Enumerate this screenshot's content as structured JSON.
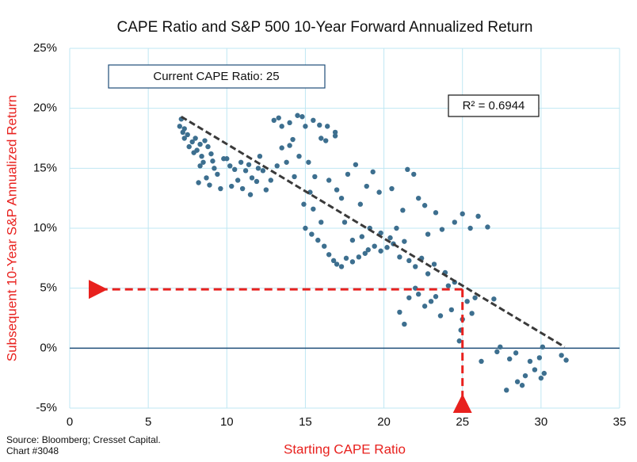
{
  "chart_data": {
    "type": "scatter",
    "title": "CAPE Ratio and S&P 500 10-Year Forward Annualized Return",
    "x_label": "Starting CAPE Ratio",
    "y_label": "Subsequent 10-Year S&P Annualized Return",
    "annotation": "Current CAPE Ratio: 25",
    "r_squared": "R² = 0.6944",
    "source": "Source: Bloomberg; Cresset Capital.",
    "chart_number": "Chart #3048",
    "color": "#3d6f8f",
    "grid": true,
    "xlim": [
      0,
      35
    ],
    "ylim": [
      -5,
      25
    ],
    "xticks": [
      0,
      5,
      10,
      15,
      20,
      25,
      30,
      35
    ],
    "yticks": [
      {
        "value": -5,
        "label": "-5%"
      },
      {
        "value": 0,
        "label": "0%"
      },
      {
        "value": 5,
        "label": "5%"
      },
      {
        "value": 10,
        "label": "10%"
      },
      {
        "value": 15,
        "label": "15%"
      },
      {
        "value": 20,
        "label": "20%"
      },
      {
        "value": 25,
        "label": "25%"
      }
    ],
    "trendline": {
      "x": [
        7.1,
        31.5
      ],
      "y": [
        19.3,
        0.1
      ]
    },
    "reference": {
      "x": 25,
      "y": 4.9
    },
    "x": [
      7,
      7.2,
      7.3,
      7.5,
      7.6,
      7.8,
      8,
      8.1,
      8.3,
      8.4,
      8.5,
      8.6,
      8.8,
      9,
      9.1,
      9.2,
      8.7,
      8.2,
      8.9,
      9.4,
      9.6,
      9.8,
      7.1,
      7.3,
      7.9,
      8.3,
      10,
      10.2,
      10.5,
      10.7,
      10.9,
      11.2,
      11,
      11.4,
      11.6,
      11.9,
      12,
      12.3,
      12.5,
      12.8,
      10.3,
      11.5,
      12.1,
      13,
      13.3,
      13.5,
      14,
      14.5,
      14.8,
      15,
      15.5,
      15.9,
      13.5,
      14,
      14.2,
      13.2,
      13.8,
      14.3,
      14.6,
      15.2,
      15.6,
      16,
      16.3,
      16.9,
      16.9,
      16.4,
      15.3,
      14.9,
      15.5,
      16,
      15,
      15.4,
      15.8,
      16.2,
      16.5,
      16.8,
      17,
      17.3,
      17.6,
      18,
      18.4,
      18.8,
      19,
      19.4,
      19.8,
      20.2,
      20.6,
      21,
      21.3,
      21.6,
      22,
      22.4,
      22.8,
      23.2,
      17.5,
      18,
      18.6,
      19.1,
      19.8,
      20.4,
      20.8,
      16.5,
      17,
      17.3,
      17.7,
      18.2,
      18.5,
      18.9,
      19.3,
      19.7,
      20.5,
      21.2,
      21.5,
      21.9,
      22.2,
      22.6,
      22.8,
      23.3,
      23.7,
      24.5,
      25,
      25.5,
      26,
      26.6,
      22,
      22.2,
      22.6,
      23,
      23.6,
      23.3,
      21,
      21.3,
      21.6,
      24.3,
      24.8,
      24.9,
      25,
      25.3,
      25.6,
      25.8,
      26.2,
      27,
      27.2,
      27.4,
      27.8,
      28,
      28.4,
      28.8,
      29,
      29.3,
      29.6,
      29.9,
      30,
      30.2,
      30.1,
      31.3,
      31.6,
      28.5,
      24.1,
      23.9,
      24.5
    ],
    "y": [
      18.5,
      18,
      17.5,
      17.8,
      16.8,
      17.2,
      17.5,
      16.5,
      17,
      16,
      15.5,
      17.3,
      16.8,
      16.2,
      15.6,
      15,
      14.2,
      13.8,
      13.6,
      14.5,
      13.3,
      15.8,
      19.1,
      18.3,
      16.3,
      15.2,
      15.8,
      15.2,
      14.9,
      14,
      15.5,
      14.8,
      13.3,
      15.3,
      14.2,
      13.9,
      15,
      14.8,
      13.2,
      14,
      13.5,
      12.8,
      16,
      19,
      19.2,
      18.5,
      18.8,
      19.4,
      19.3,
      18.5,
      19,
      18.6,
      16.7,
      16.9,
      17.4,
      15.2,
      15.5,
      14.3,
      16,
      15.5,
      14.3,
      17.5,
      17.3,
      17.7,
      18,
      18.5,
      13,
      12,
      11.6,
      10.5,
      10,
      9.5,
      9,
      8.5,
      7.8,
      7.3,
      7,
      6.8,
      7.5,
      7.2,
      7.6,
      7.9,
      8.2,
      8.5,
      8.1,
      8.4,
      8.7,
      7.6,
      8.9,
      7.3,
      6.8,
      7.5,
      6.2,
      7,
      10.5,
      9,
      9.3,
      10,
      9.6,
      9.2,
      10,
      14,
      13.2,
      12.5,
      14.5,
      15.3,
      12,
      13.5,
      14.7,
      13,
      13.3,
      11.5,
      14.9,
      14.5,
      12.5,
      11.9,
      9.5,
      11.3,
      9.9,
      10.5,
      11.2,
      10,
      11,
      10.1,
      5,
      4.5,
      3.5,
      3.9,
      2.7,
      4.3,
      3,
      2,
      4.2,
      3.2,
      0.6,
      1.5,
      2.4,
      3.9,
      2.9,
      4.2,
      -1.1,
      4.1,
      -0.3,
      0.1,
      -3.5,
      -0.9,
      -0.4,
      -3.1,
      -2.3,
      -1.1,
      -1.8,
      -0.8,
      -2.5,
      -2.1,
      0.1,
      -0.6,
      -1,
      -2.8,
      5.2,
      6.3,
      5.5
    ]
  }
}
